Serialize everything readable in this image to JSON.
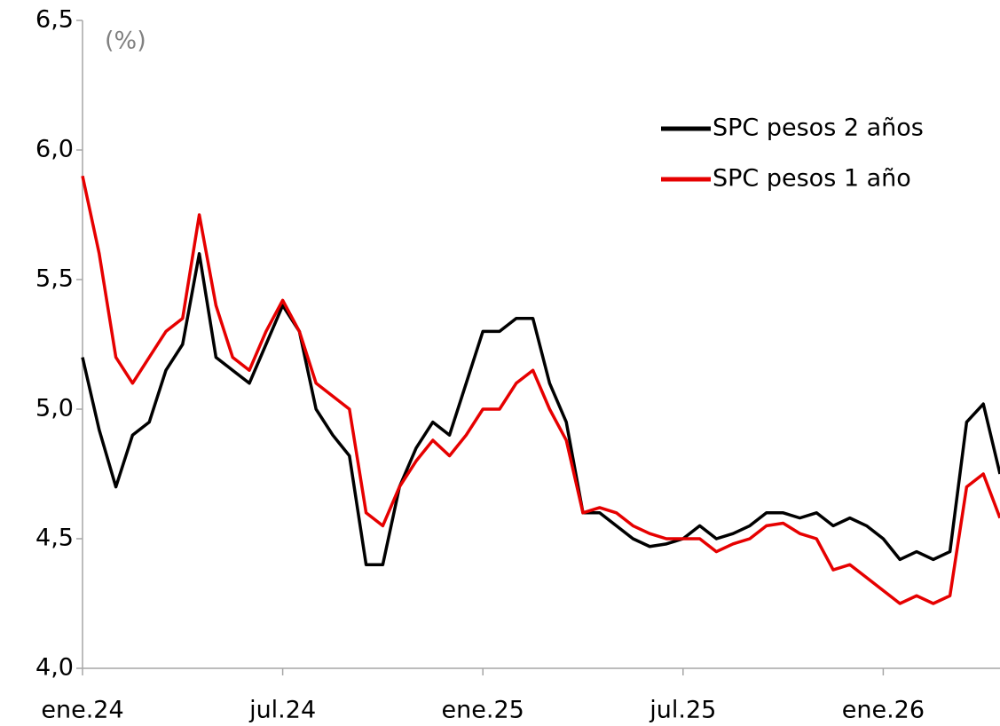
{
  "chart_data": {
    "type": "line",
    "annotation": "(%)",
    "x": [
      0,
      0.5,
      1,
      1.5,
      2,
      2.5,
      3,
      3.5,
      4,
      4.5,
      5,
      5.5,
      6,
      6.5,
      7,
      7.5,
      8,
      8.5,
      9,
      9.5,
      10,
      10.5,
      11,
      11.5,
      12,
      12.5,
      13,
      13.5,
      14,
      14.5,
      15,
      15.5,
      16,
      16.5,
      17,
      17.5,
      18,
      18.5,
      19,
      19.5,
      20,
      20.5,
      21,
      21.5,
      22,
      22.5,
      23,
      23.5,
      24,
      24.5,
      25,
      25.5,
      26,
      26.5,
      27,
      27.5
    ],
    "series": [
      {
        "name": "SPC pesos 2 años",
        "color": "#000000",
        "values": [
          5.2,
          4.92,
          4.7,
          4.9,
          4.95,
          5.15,
          5.25,
          5.6,
          5.2,
          5.15,
          5.1,
          5.25,
          5.4,
          5.3,
          5.0,
          4.9,
          4.82,
          4.4,
          4.4,
          4.7,
          4.85,
          4.95,
          4.9,
          5.1,
          5.3,
          5.3,
          5.35,
          5.35,
          5.1,
          4.95,
          4.6,
          4.6,
          4.55,
          4.5,
          4.47,
          4.48,
          4.5,
          4.55,
          4.5,
          4.52,
          4.55,
          4.6,
          4.6,
          4.58,
          4.6,
          4.55,
          4.58,
          4.55,
          4.5,
          4.42,
          4.45,
          4.42,
          4.45,
          4.95,
          5.02,
          4.75
        ]
      },
      {
        "name": "SPC pesos 1 año",
        "color": "#e60000",
        "values": [
          5.9,
          5.6,
          5.2,
          5.1,
          5.2,
          5.3,
          5.35,
          5.75,
          5.4,
          5.2,
          5.15,
          5.3,
          5.42,
          5.3,
          5.1,
          5.05,
          5.0,
          4.6,
          4.55,
          4.7,
          4.8,
          4.88,
          4.82,
          4.9,
          5.0,
          5.0,
          5.1,
          5.15,
          5.0,
          4.88,
          4.6,
          4.62,
          4.6,
          4.55,
          4.52,
          4.5,
          4.5,
          4.5,
          4.45,
          4.48,
          4.5,
          4.55,
          4.56,
          4.52,
          4.5,
          4.38,
          4.4,
          4.35,
          4.3,
          4.25,
          4.28,
          4.25,
          4.28,
          4.7,
          4.75,
          4.58
        ]
      }
    ],
    "xlim": [
      0,
      27.5
    ],
    "xticks": [
      {
        "value": 0,
        "label": "ene.24"
      },
      {
        "value": 6,
        "label": "jul.24"
      },
      {
        "value": 12,
        "label": "ene.25"
      },
      {
        "value": 18,
        "label": "jul.25"
      },
      {
        "value": 24,
        "label": "ene.26"
      }
    ],
    "ylim": [
      4.0,
      6.5
    ],
    "yticks": [
      {
        "value": 4.0,
        "label": "4,0"
      },
      {
        "value": 4.5,
        "label": "4,5"
      },
      {
        "value": 5.0,
        "label": "5,0"
      },
      {
        "value": 5.5,
        "label": "5,5"
      },
      {
        "value": 6.0,
        "label": "6,0"
      },
      {
        "value": 6.5,
        "label": "6,5"
      }
    ],
    "grid": false,
    "legend": "upper right"
  }
}
